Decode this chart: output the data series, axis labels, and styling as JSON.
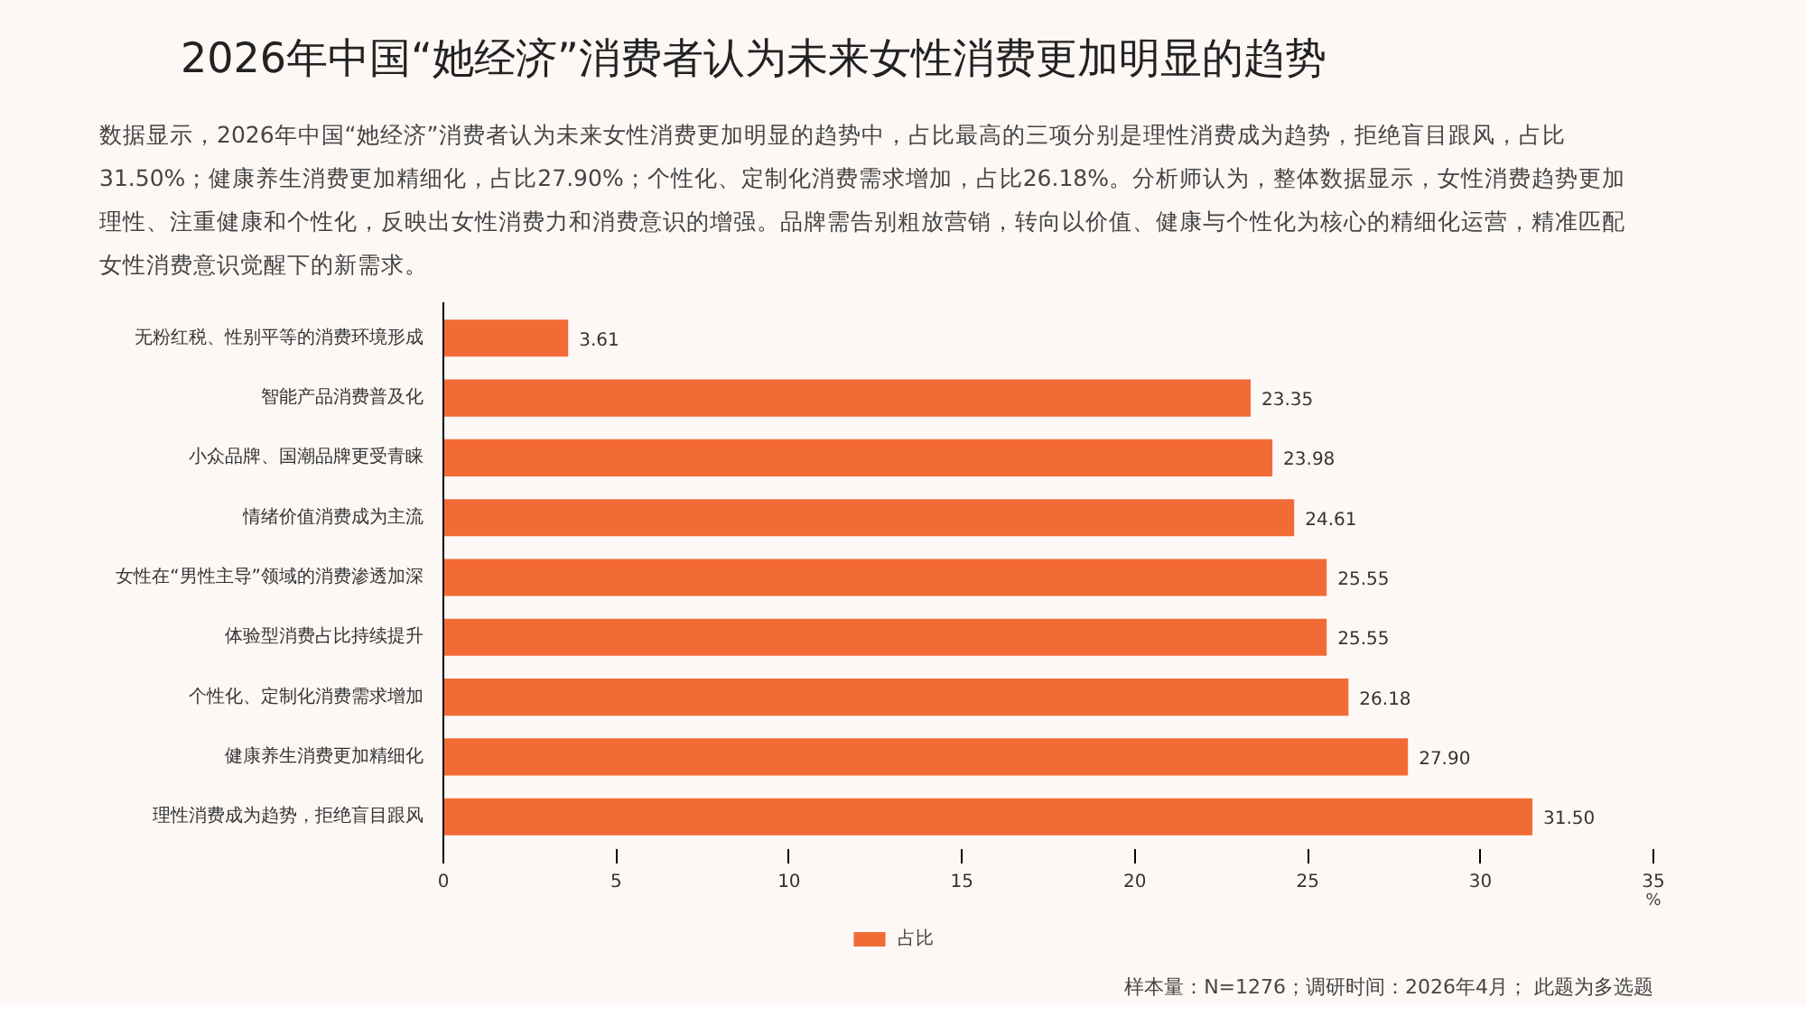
{
  "chart_data": {
    "type": "bar",
    "orientation": "horizontal",
    "title": "2026年中国“她经济”消费者认为未来女性消费更加明显的趋势",
    "subtitle": "数据显示，2026年中国“她经济”消费者认为未来女性消费更加明显的趋势中，占比最高的三项分别是理性消费成为趋势，拒绝盲目跟风，占比31.50%；健康养生消费更加精细化，占比27.90%；个性化、定制化消费需求增加，占比26.18%。分析师认为，整体数据显示，女性消费趋势更加理性、注重健康和个性化，反映出女性消费力和消费意识的增强。品牌需告别粗放营销，转向以价值、健康与个性化为核心的精细化运营，精准匹配女性消费意识觉醒下的新需求。",
    "xlabel": "%",
    "categories": [
      "无粉红税、性别平等的消费环境形成",
      "智能产品消费普及化",
      "小众品牌、国潮品牌更受青睐",
      "情绪价值消费成为主流",
      "女性在“男性主导”领域的消费渗透加深",
      "体验型消费占比持续提升",
      "个性化、定制化消费需求增加",
      "健康养生消费更加精细化",
      "理性消费成为趋势，拒绝盲目跟风"
    ],
    "series": [
      {
        "name": "占比",
        "color": "#f26b36",
        "values": [
          3.61,
          23.35,
          23.98,
          24.61,
          25.55,
          25.55,
          26.18,
          27.9,
          31.5
        ]
      }
    ],
    "value_labels": [
      "3.61",
      "23.35",
      "23.98",
      "24.61",
      "25.55",
      "25.55",
      "26.18",
      "27.90",
      "31.50"
    ],
    "xlim": [
      0,
      35
    ],
    "xticks": [
      0,
      5,
      10,
      15,
      20,
      25,
      30,
      35
    ],
    "grid": false,
    "legend": "bottom",
    "annotations": [
      "样本量：N=1276；调研时间：2026年4月； 此题为多选题"
    ]
  }
}
